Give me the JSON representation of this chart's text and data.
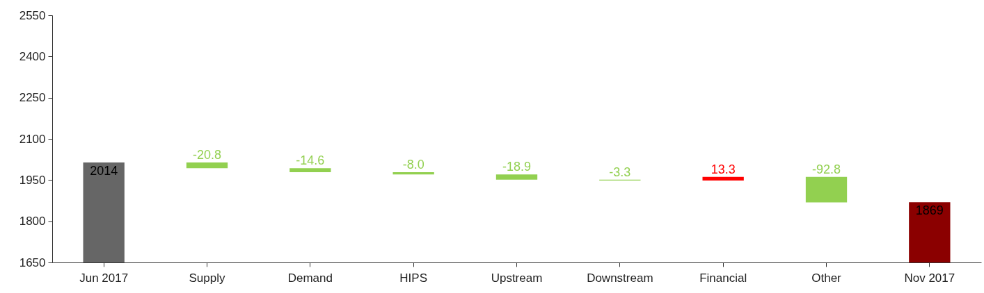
{
  "chart_data": {
    "type": "bar",
    "categories": [
      "Jun 2017",
      "Supply",
      "Demand",
      "HIPS",
      "Upstream",
      "Downstream",
      "Financial",
      "Other",
      "Nov 2017"
    ],
    "values": [
      2014,
      -20.8,
      -14.6,
      -8.0,
      -18.9,
      -3.3,
      13.3,
      -92.8,
      1869
    ],
    "base": [
      null,
      2014,
      1993.2,
      1978.6,
      1970.6,
      1951.7,
      1948.4,
      1961.7,
      null
    ],
    "colors": [
      "#666666",
      "#92d050",
      "#92d050",
      "#92d050",
      "#92d050",
      "#92d050",
      "#ff0000",
      "#92d050",
      "#8b0000"
    ],
    "value_labels": [
      "2014",
      "-20.8",
      "-14.6",
      "-8.0",
      "-18.9",
      "-3.3",
      "13.3",
      "-92.8",
      "1869"
    ],
    "ylim": [
      1650,
      2550
    ],
    "yticks": [
      1650,
      1800,
      1950,
      2100,
      2250,
      2400,
      2550
    ],
    "grid": false
  }
}
